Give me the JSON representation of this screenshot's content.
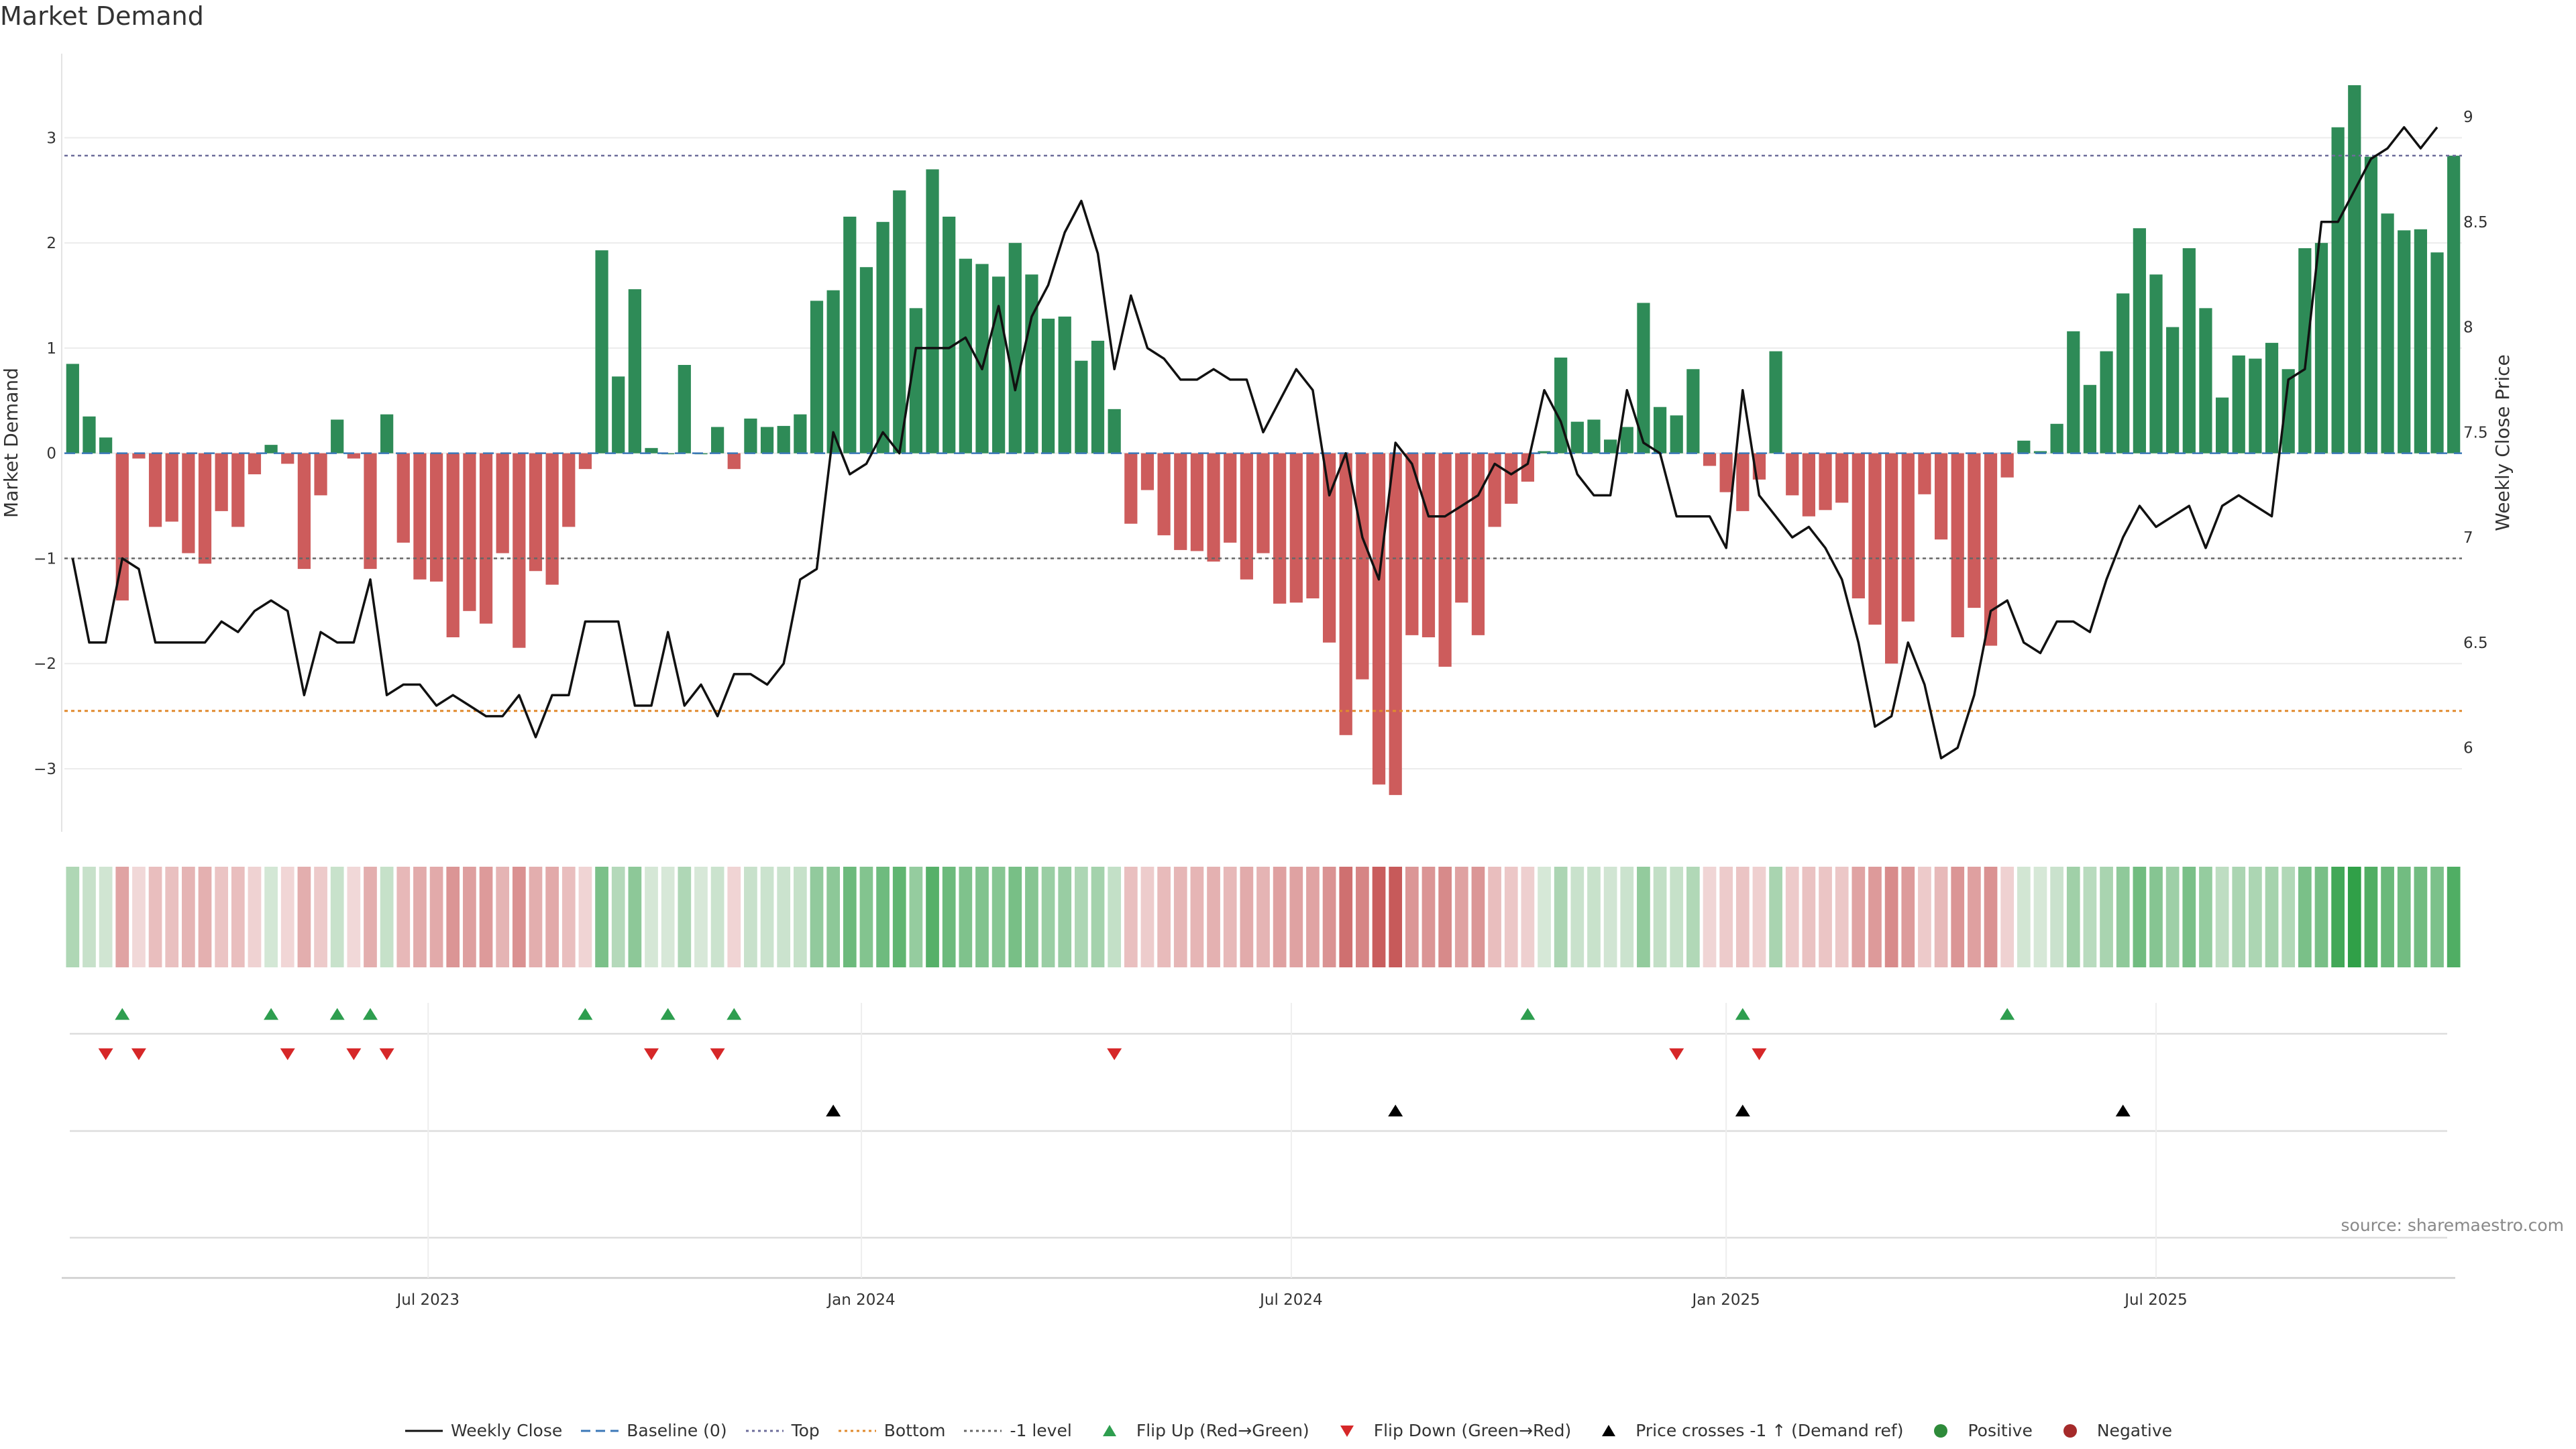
{
  "title": "Market Demand",
  "source": "source: sharemaestro.com",
  "legend": [
    {
      "label": "Weekly Close",
      "symbol": "line",
      "color": "#111111"
    },
    {
      "label": "Baseline (0)",
      "symbol": "dash",
      "color": "#3b78b8"
    },
    {
      "label": "Top",
      "symbol": "dot",
      "color": "#6c6c9a"
    },
    {
      "label": "Bottom",
      "symbol": "dot",
      "color": "#e08a2e"
    },
    {
      "label": "-1 level",
      "symbol": "dot",
      "color": "#666666"
    },
    {
      "label": "Flip Up (Red→Green)",
      "symbol": "tri-up",
      "color": "#2e9e4f"
    },
    {
      "label": "Flip Down (Green→Red)",
      "symbol": "tri-down",
      "color": "#d62728"
    },
    {
      "label": "Price crosses -1 ↑ (Demand ref)",
      "symbol": "tri-up",
      "color": "#000000"
    },
    {
      "label": "Positive",
      "symbol": "circle",
      "color": "#2e8b3a"
    },
    {
      "label": "Negative",
      "symbol": "circle",
      "color": "#a52a2a"
    }
  ],
  "colors": {
    "positive": "#2e8b57",
    "negative": "#cd5c5c",
    "price": "#111111",
    "top": "#6c6c9a",
    "bottom": "#e08a2e",
    "minus1": "#666666",
    "flip_up": "#2e9e4f",
    "flip_down": "#d62728",
    "cross": "#000000"
  },
  "chart_data": {
    "type": "bar",
    "title": "Market Demand",
    "ylabel": "Market Demand",
    "y2label": "Weekly Close Price",
    "ylim": [
      -3.6,
      3.8
    ],
    "y2lim": [
      5.6,
      9.3
    ],
    "yticks": [
      -3,
      -2,
      -1,
      0,
      1,
      2,
      3
    ],
    "y2ticks": [
      6,
      6.5,
      7,
      7.5,
      8,
      8.5,
      9
    ],
    "y2tick_labels": [
      "6",
      "6.5",
      "7",
      "7.5",
      "8",
      "8.5",
      "9"
    ],
    "ytick_labels": [
      "−3",
      "−2",
      "−1",
      "0",
      "1",
      "2",
      "3"
    ],
    "reference_lines": {
      "top": 2.83,
      "bottom": -2.45,
      "minus1": -1.0,
      "baseline": 0
    },
    "x_date_ticks": [
      {
        "label": "Jul 2023",
        "week": 21.5
      },
      {
        "label": "Jan 2024",
        "week": 47.7
      },
      {
        "label": "Jul 2024",
        "week": 73.7
      },
      {
        "label": "Jan 2025",
        "week": 100
      },
      {
        "label": "Jul 2025",
        "week": 126
      }
    ],
    "demand": [
      0.85,
      0.35,
      0.15,
      -1.4,
      -0.05,
      -0.7,
      -0.65,
      -0.95,
      -1.05,
      -0.55,
      -0.7,
      -0.2,
      0.08,
      -0.1,
      -1.1,
      -0.4,
      0.32,
      -0.05,
      -1.1,
      0.37,
      -0.85,
      -1.2,
      -1.22,
      -1.75,
      -1.5,
      -1.62,
      -0.95,
      -1.85,
      -1.12,
      -1.25,
      -0.7,
      -0.15,
      1.93,
      0.73,
      1.56,
      0.05,
      0,
      0.84,
      0,
      0.25,
      -0.15,
      0.33,
      0.25,
      0.26,
      0.37,
      1.45,
      1.55,
      2.25,
      1.77,
      2.2,
      2.5,
      1.38,
      2.7,
      2.25,
      1.85,
      1.8,
      1.68,
      2.0,
      1.7,
      1.28,
      1.3,
      0.88,
      1.07,
      0.42,
      -0.67,
      -0.35,
      -0.78,
      -0.92,
      -0.93,
      -1.03,
      -0.85,
      -1.2,
      -0.95,
      -1.43,
      -1.42,
      -1.38,
      -1.8,
      -2.68,
      -2.15,
      -3.15,
      -3.25,
      -1.73,
      -1.75,
      -2.03,
      -1.42,
      -1.73,
      -0.7,
      -0.48,
      -0.27,
      0.02,
      0.91,
      0.3,
      0.32,
      0.13,
      0.25,
      1.43,
      0.44,
      0.36,
      0.8,
      -0.12,
      -0.37,
      -0.55,
      -0.25,
      0.97,
      -0.4,
      -0.6,
      -0.54,
      -0.47,
      -1.38,
      -1.63,
      -2.0,
      -1.6,
      -0.39,
      -0.82,
      -1.75,
      -1.47,
      -1.83,
      -0.23,
      0.12,
      0.02,
      0.28,
      1.16,
      0.65,
      0.97,
      1.52,
      2.14,
      1.7,
      1.2,
      1.95,
      1.38,
      0.53,
      0.93,
      0.9,
      1.05,
      0.8,
      1.95,
      2.0,
      3.1,
      3.5,
      2.82,
      2.28,
      2.12,
      2.13,
      1.91,
      2.83
    ],
    "close": [
      6.9,
      6.5,
      6.5,
      6.9,
      6.85,
      6.5,
      6.5,
      6.5,
      6.5,
      6.6,
      6.55,
      6.65,
      6.7,
      6.65,
      6.25,
      6.55,
      6.5,
      6.5,
      6.8,
      6.25,
      6.3,
      6.3,
      6.2,
      6.25,
      6.2,
      6.15,
      6.15,
      6.25,
      6.05,
      6.25,
      6.25,
      6.6,
      6.6,
      6.6,
      6.2,
      6.2,
      6.55,
      6.2,
      6.3,
      6.15,
      6.35,
      6.35,
      6.3,
      6.4,
      6.8,
      6.85,
      7.5,
      7.3,
      7.35,
      7.5,
      7.4,
      7.9,
      7.9,
      7.9,
      7.95,
      7.8,
      8.1,
      7.7,
      8.05,
      8.2,
      8.45,
      8.6,
      8.35,
      7.8,
      8.15,
      7.9,
      7.85,
      7.75,
      7.75,
      7.8,
      7.75,
      7.75,
      7.5,
      7.65,
      7.8,
      7.7,
      7.2,
      7.4,
      7.0,
      6.8,
      7.45,
      7.35,
      7.1,
      7.1,
      7.15,
      7.2,
      7.35,
      7.3,
      7.35,
      7.7,
      7.55,
      7.3,
      7.2,
      7.2,
      7.7,
      7.45,
      7.4,
      7.1,
      7.1,
      7.1,
      6.95,
      7.7,
      7.2,
      7.1,
      7.0,
      7.05,
      6.95,
      6.8,
      6.5,
      6.1,
      6.15,
      6.5,
      6.3,
      5.95,
      6.0,
      6.25,
      6.65,
      6.7,
      6.5,
      6.45,
      6.6,
      6.6,
      6.55,
      6.8,
      7.0,
      7.15,
      7.05,
      7.1,
      7.15,
      6.95,
      7.15,
      7.2,
      7.15,
      7.1,
      7.75,
      7.8,
      8.5,
      8.5,
      8.65,
      8.8,
      8.85,
      8.95,
      8.85,
      8.95
    ],
    "flip_up_weeks": [
      3,
      12,
      16,
      18,
      31,
      36,
      40,
      88,
      101,
      117
    ],
    "flip_down_weeks": [
      2,
      4,
      13,
      17,
      19,
      35,
      39,
      63,
      97,
      102
    ],
    "price_cross_weeks": [
      46,
      80,
      101,
      124
    ]
  },
  "axes_texts": {
    "ylabel": "Market Demand",
    "y2label": "Weekly Close Price"
  }
}
